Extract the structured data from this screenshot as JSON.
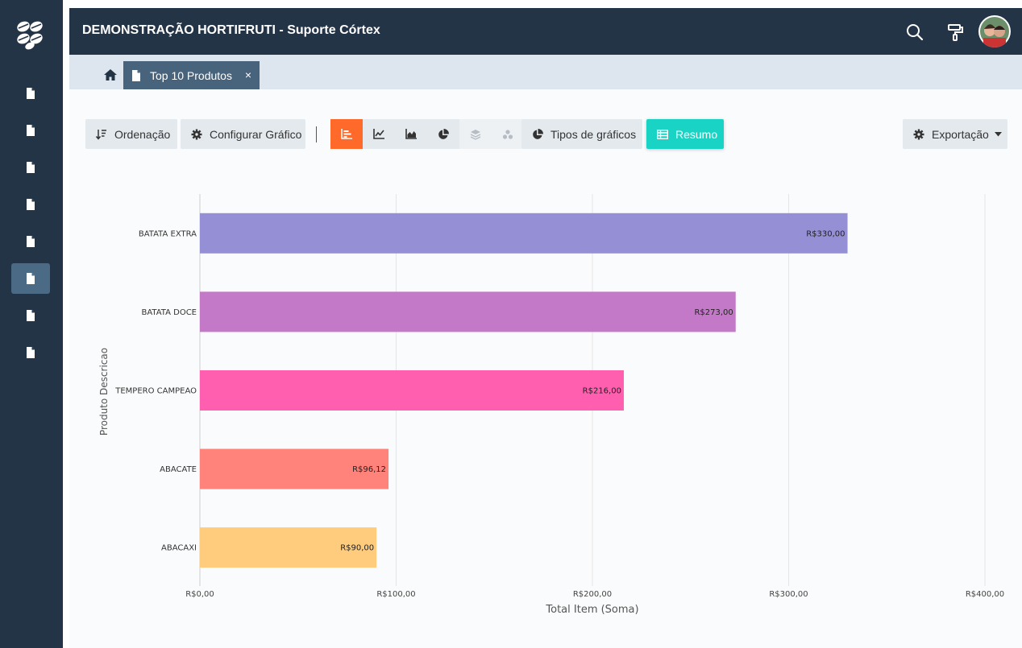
{
  "app": {
    "title": "DEMONSTRAÇÃO HORTIFRUTI - Suporte Córtex"
  },
  "sidebar": {
    "items": [
      "document-icon",
      "document-icon",
      "document-icon",
      "document-icon",
      "document-icon",
      "document-icon",
      "document-icon",
      "document-icon"
    ],
    "active_index": 5,
    "bg": "#243447"
  },
  "header": {
    "icons": [
      "search-icon",
      "paint-roller-icon",
      "avatar"
    ]
  },
  "tabs": [
    {
      "label": "Top 10 Produtos",
      "close": "×"
    }
  ],
  "toolbar": {
    "sort_label": "Ordenação",
    "configure_label": "Configurar Gráfico",
    "chart_types_label": "Tipos de gráficos",
    "summary_label": "Resumo",
    "export_label": "Exportação",
    "chart_type_buttons": [
      "bar-chart-icon",
      "line-chart-icon",
      "area-chart-icon",
      "pie-chart-icon",
      "layers-icon",
      "bubble-icon"
    ],
    "active_type": "bar-chart-icon",
    "accent": "#ff6a2a",
    "summary_color": "#19d3c5"
  },
  "chart_data": {
    "type": "bar",
    "orientation": "horizontal",
    "categories": [
      "BATATA EXTRA",
      "BATATA DOCE",
      "TEMPERO CAMPEAO",
      "ABACATE",
      "ABACAXI"
    ],
    "values": [
      330.0,
      273.0,
      216.0,
      96.12,
      90.0
    ],
    "value_labels": [
      "R$330,00",
      "R$273,00",
      "R$216,00",
      "R$96,12",
      "R$90,00"
    ],
    "colors": [
      "#9590d5",
      "#c379c8",
      "#ff5fae",
      "#ff837b",
      "#ffcb7c"
    ],
    "xlabel": "Total Item (Soma)",
    "ylabel": "Produto Descricao",
    "xlim": [
      0,
      400
    ],
    "xticks": [
      0,
      100,
      200,
      300,
      400
    ],
    "xtick_labels": [
      "R$0,00",
      "R$100,00",
      "R$200,00",
      "R$300,00",
      "R$400,00"
    ],
    "grid": true,
    "legend": "none"
  }
}
